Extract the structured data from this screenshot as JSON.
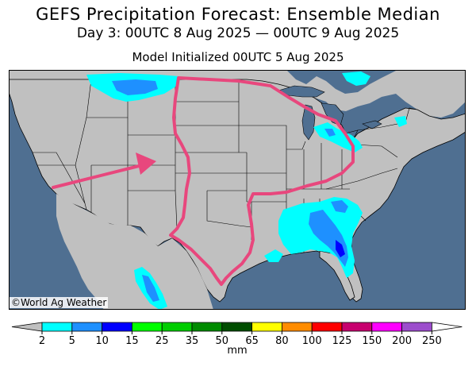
{
  "header": {
    "title": "GEFS Precipitation Forecast: Ensemble Median",
    "period": "Day 3: 00UTC 8 Aug 2025 — 00UTC 9 Aug 2025",
    "init": "Model Initialized 00UTC 5 Aug 2025"
  },
  "map": {
    "region": "Contiguous United States",
    "copyright": "©World Ag Weather",
    "land_color": "#c0c0c0",
    "water_color": "#4f6f91",
    "highlight_color": "#e8477d",
    "arrow_color": "#e8477d"
  },
  "colorbar": {
    "unit": "mm",
    "ticks": [
      "2",
      "5",
      "10",
      "15",
      "25",
      "35",
      "50",
      "65",
      "80",
      "100",
      "125",
      "150",
      "200",
      "250"
    ],
    "colors": [
      "#00ffff",
      "#1e90ff",
      "#0000ff",
      "#00ff00",
      "#00cd00",
      "#008b00",
      "#004d00",
      "#ffff00",
      "#ff8c00",
      "#ff0000",
      "#c7006e",
      "#ff00ff",
      "#9c4dcc"
    ],
    "under_color": "#c0c0c0",
    "over_color": "#ffffff"
  }
}
